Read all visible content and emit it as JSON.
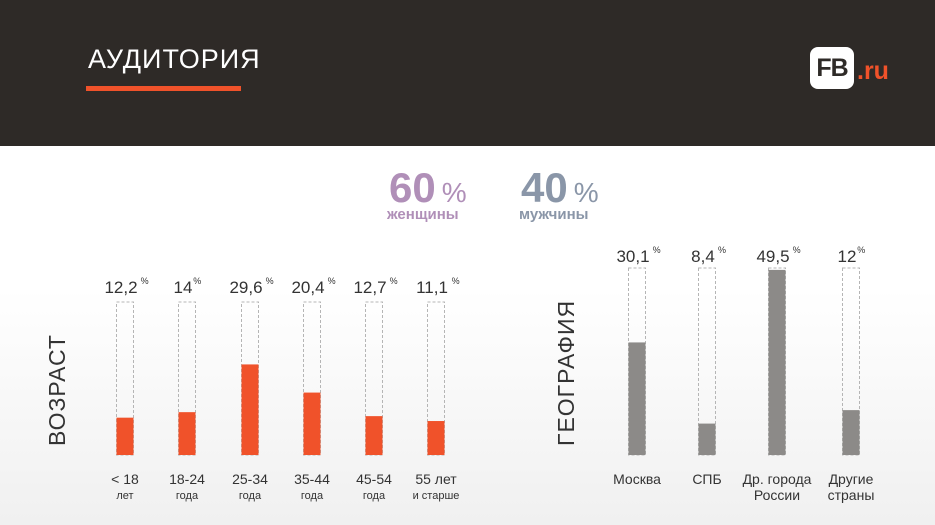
{
  "header": {
    "title": "АУДИТОРИЯ",
    "logo": {
      "main": "FB",
      "suffix": ".ru"
    }
  },
  "gender": {
    "women": {
      "value": "60",
      "unit": "%",
      "label": "женщины"
    },
    "men": {
      "value": "40",
      "unit": "%",
      "label": "мужчины"
    }
  },
  "colors": {
    "header_bg": "#2e2a27",
    "accent": "#f0522a",
    "geo_bar": "#8c8a88",
    "women": "#b08fb8",
    "men": "#8a96a8"
  },
  "chart_data": [
    {
      "type": "bar",
      "title": "ВОЗРАСТ",
      "categories": [
        {
          "line1": "< 18",
          "line2": "лет"
        },
        {
          "line1": "18-24",
          "line2": "года"
        },
        {
          "line1": "25-34",
          "line2": "года"
        },
        {
          "line1": "35-44",
          "line2": "года"
        },
        {
          "line1": "45-54",
          "line2": "года"
        },
        {
          "line1": "55 лет",
          "line2": "и старше"
        }
      ],
      "values": [
        12.2,
        14,
        29.6,
        20.4,
        12.7,
        11.1
      ],
      "value_labels": [
        "12,2",
        "14",
        "29,6",
        "20,4",
        "12,7",
        "11,1"
      ],
      "unit": "%"
    },
    {
      "type": "bar",
      "title": "ГЕОГРАФИЯ",
      "categories": [
        {
          "line1": "Москва",
          "line2": ""
        },
        {
          "line1": "СПБ",
          "line2": ""
        },
        {
          "line1": "Др. города",
          "line2": "России"
        },
        {
          "line1": "Другие",
          "line2": "страны"
        }
      ],
      "values": [
        30.1,
        8.4,
        49.5,
        12
      ],
      "value_labels": [
        "30,1",
        "8,4",
        "49,5",
        "12"
      ],
      "unit": "%"
    }
  ]
}
